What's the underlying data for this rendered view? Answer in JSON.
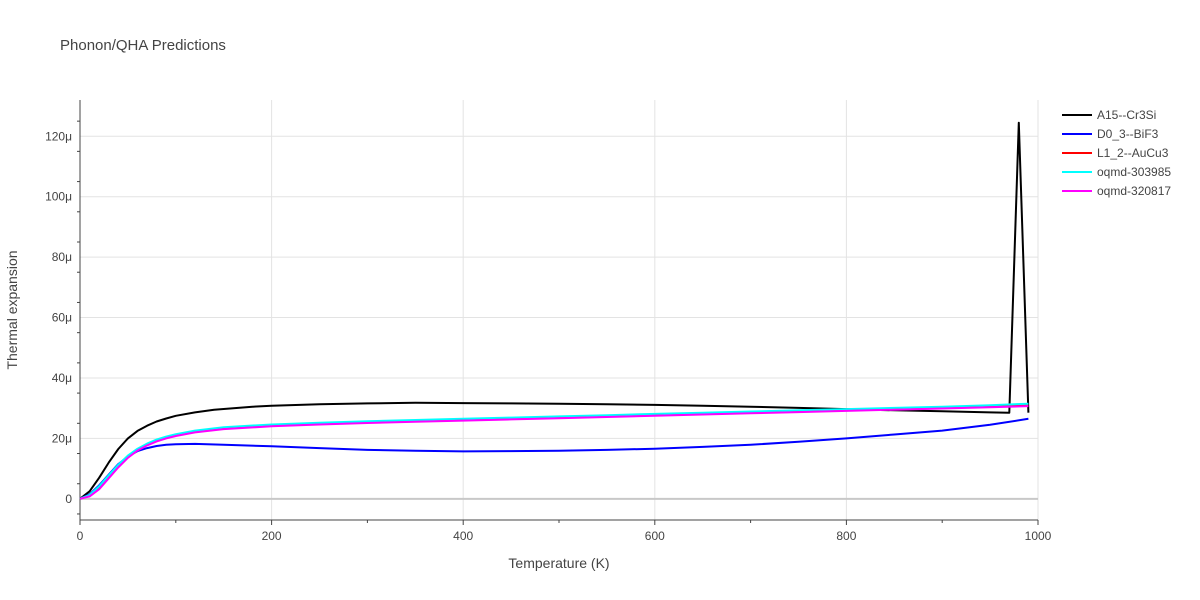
{
  "chart_data": {
    "type": "line",
    "title": "Phonon/QHA Predictions",
    "xlabel": "Temperature (K)",
    "ylabel": "Thermal expansion",
    "xlim": [
      0,
      1000
    ],
    "ylim": [
      -7,
      132
    ],
    "x_ticks": [
      0,
      200,
      400,
      600,
      800,
      1000
    ],
    "x_tick_labels": [
      "0",
      "200",
      "400",
      "600",
      "800",
      "1000"
    ],
    "y_ticks": [
      0,
      20,
      40,
      60,
      80,
      100,
      120
    ],
    "y_tick_labels": [
      "0",
      "20μ",
      "40μ",
      "60μ",
      "80μ",
      "100μ",
      "120μ"
    ],
    "grid": true,
    "legend_position": "top-right",
    "series": [
      {
        "name": "A15--Cr3Si",
        "color": "#000000",
        "x": [
          0,
          10,
          20,
          30,
          40,
          50,
          60,
          70,
          80,
          90,
          100,
          120,
          140,
          160,
          180,
          200,
          250,
          300,
          350,
          400,
          450,
          500,
          550,
          600,
          650,
          700,
          750,
          800,
          850,
          900,
          950,
          970,
          980,
          990
        ],
        "y": [
          0,
          2.5,
          7,
          12,
          16.5,
          20,
          22.5,
          24.2,
          25.6,
          26.6,
          27.5,
          28.6,
          29.5,
          30.0,
          30.5,
          30.8,
          31.3,
          31.6,
          31.8,
          31.7,
          31.6,
          31.5,
          31.3,
          31.1,
          30.8,
          30.5,
          30.1,
          29.7,
          29.3,
          29.0,
          28.6,
          28.5,
          124.5,
          28.5
        ]
      },
      {
        "name": "D0_3--BiF3",
        "color": "#0000ff",
        "x": [
          0,
          10,
          20,
          30,
          40,
          50,
          60,
          70,
          80,
          90,
          100,
          120,
          150,
          200,
          250,
          300,
          350,
          400,
          450,
          500,
          550,
          600,
          650,
          700,
          750,
          800,
          850,
          900,
          950,
          990
        ],
        "y": [
          0,
          1.5,
          4.5,
          8,
          11.5,
          14,
          15.8,
          16.8,
          17.5,
          17.9,
          18.1,
          18.2,
          17.9,
          17.4,
          16.8,
          16.2,
          15.9,
          15.7,
          15.8,
          15.9,
          16.2,
          16.6,
          17.2,
          17.9,
          18.9,
          20.0,
          21.3,
          22.6,
          24.5,
          26.5
        ]
      },
      {
        "name": "L1_2--AuCu3",
        "color": "#ff0000",
        "x": [
          0,
          10,
          20,
          30,
          40,
          50,
          60,
          70,
          80,
          90,
          100,
          120,
          150,
          200,
          250,
          300,
          350,
          400,
          450,
          500,
          550,
          600,
          650,
          700,
          750,
          800,
          850,
          900,
          950,
          990
        ],
        "y": [
          0,
          1.2,
          4,
          7.5,
          11,
          14,
          16.3,
          17.9,
          19.2,
          20.2,
          21.0,
          22.2,
          23.3,
          24.2,
          24.8,
          25.3,
          25.7,
          26.1,
          26.5,
          26.9,
          27.3,
          27.7,
          28.1,
          28.5,
          28.9,
          29.3,
          29.7,
          30.1,
          30.5,
          30.9
        ]
      },
      {
        "name": "oqmd-303985",
        "color": "#00ffff",
        "x": [
          0,
          10,
          20,
          30,
          40,
          50,
          60,
          70,
          80,
          90,
          100,
          120,
          150,
          200,
          250,
          300,
          350,
          400,
          450,
          500,
          550,
          600,
          650,
          700,
          750,
          800,
          850,
          900,
          950,
          990
        ],
        "y": [
          0,
          1.3,
          4.2,
          7.8,
          11.3,
          14.3,
          16.6,
          18.3,
          19.6,
          20.6,
          21.4,
          22.6,
          23.7,
          24.6,
          25.2,
          25.7,
          26.1,
          26.5,
          26.9,
          27.3,
          27.7,
          28.1,
          28.5,
          28.9,
          29.3,
          29.7,
          30.1,
          30.5,
          31.0,
          31.5
        ]
      },
      {
        "name": "oqmd-320817",
        "color": "#ff00ff",
        "x": [
          0,
          10,
          20,
          30,
          40,
          50,
          60,
          70,
          80,
          90,
          100,
          120,
          150,
          200,
          250,
          300,
          350,
          400,
          450,
          500,
          550,
          600,
          650,
          700,
          750,
          800,
          850,
          900,
          950,
          990
        ],
        "y": [
          0,
          0.8,
          3.2,
          6.8,
          10.4,
          13.6,
          16.0,
          17.7,
          19.0,
          20.0,
          20.8,
          22.0,
          23.1,
          24.0,
          24.6,
          25.1,
          25.5,
          25.9,
          26.3,
          26.7,
          27.1,
          27.5,
          27.9,
          28.3,
          28.7,
          29.1,
          29.5,
          29.9,
          30.3,
          30.7
        ]
      }
    ]
  }
}
